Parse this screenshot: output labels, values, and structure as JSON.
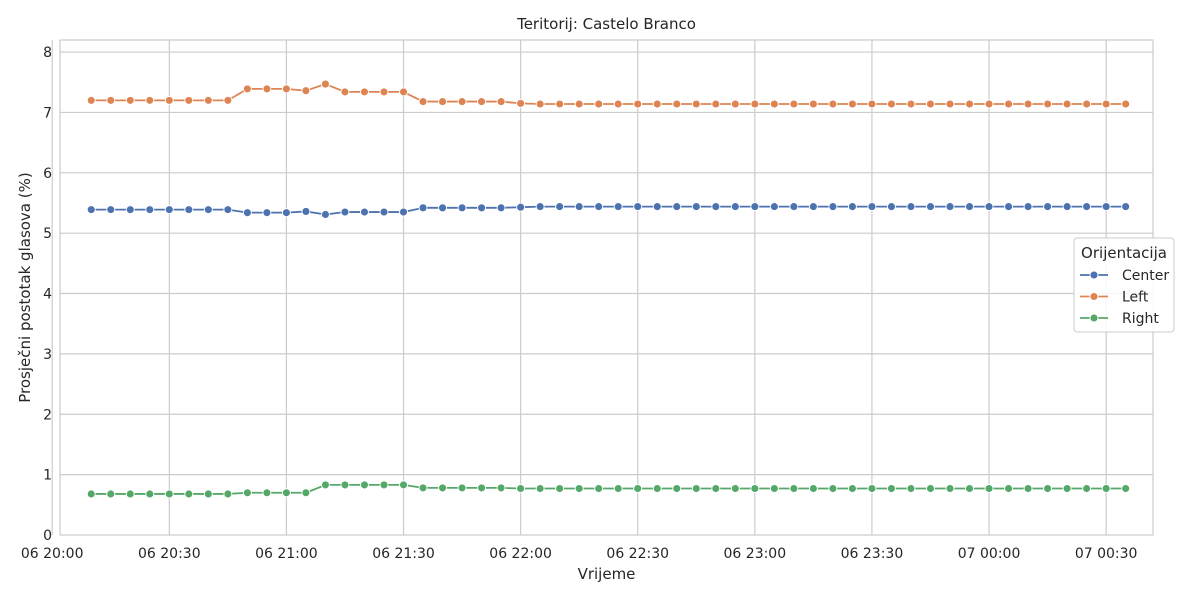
{
  "chart_data": {
    "type": "line",
    "title": "Teritorij: Castelo Branco",
    "xlabel": "Vrijeme",
    "ylabel": "Prosječni postotak glasova (%)",
    "xlim": [
      "06 20:02",
      "07 00:42"
    ],
    "ylim": [
      0,
      8.2
    ],
    "x_ticks": [
      {
        "time": "06 20:00",
        "label": "06 20:00"
      },
      {
        "time": "06 20:30",
        "label": "06 20:30"
      },
      {
        "time": "06 21:00",
        "label": "06 21:00"
      },
      {
        "time": "06 21:30",
        "label": "06 21:30"
      },
      {
        "time": "06 22:00",
        "label": "06 22:00"
      },
      {
        "time": "06 22:30",
        "label": "06 22:30"
      },
      {
        "time": "06 23:00",
        "label": "06 23:00"
      },
      {
        "time": "06 23:30",
        "label": "06 23:30"
      },
      {
        "time": "07 00:00",
        "label": "07 00:00"
      },
      {
        "time": "07 00:30",
        "label": "07 00:30"
      }
    ],
    "y_ticks": [
      0,
      1,
      2,
      3,
      4,
      5,
      6,
      7,
      8
    ],
    "grid": true,
    "legend": {
      "title": "Orijentacija",
      "position": "right"
    },
    "x": [
      "06 20:10",
      "06 20:15",
      "06 20:20",
      "06 20:25",
      "06 20:30",
      "06 20:35",
      "06 20:40",
      "06 20:45",
      "06 20:50",
      "06 20:55",
      "06 21:00",
      "06 21:05",
      "06 21:10",
      "06 21:15",
      "06 21:20",
      "06 21:25",
      "06 21:30",
      "06 21:35",
      "06 21:40",
      "06 21:45",
      "06 21:50",
      "06 21:55",
      "06 22:00",
      "06 22:05",
      "06 22:10",
      "06 22:15",
      "06 22:20",
      "06 22:25",
      "06 22:30",
      "06 22:35",
      "06 22:40",
      "06 22:45",
      "06 22:50",
      "06 22:55",
      "06 23:00",
      "06 23:05",
      "06 23:10",
      "06 23:15",
      "06 23:20",
      "06 23:25",
      "06 23:30",
      "06 23:35",
      "06 23:40",
      "06 23:45",
      "06 23:50",
      "06 23:55",
      "07 00:00",
      "07 00:05",
      "07 00:10",
      "07 00:15",
      "07 00:20",
      "07 00:25",
      "07 00:30",
      "07 00:35"
    ],
    "series": [
      {
        "name": "Center",
        "color": "#4c72b0",
        "values": [
          5.39,
          5.39,
          5.39,
          5.39,
          5.39,
          5.39,
          5.39,
          5.39,
          5.34,
          5.34,
          5.34,
          5.36,
          5.31,
          5.35,
          5.35,
          5.35,
          5.35,
          5.42,
          5.42,
          5.42,
          5.42,
          5.42,
          5.43,
          5.44,
          5.44,
          5.44,
          5.44,
          5.44,
          5.44,
          5.44,
          5.44,
          5.44,
          5.44,
          5.44,
          5.44,
          5.44,
          5.44,
          5.44,
          5.44,
          5.44,
          5.44,
          5.44,
          5.44,
          5.44,
          5.44,
          5.44,
          5.44,
          5.44,
          5.44,
          5.44,
          5.44,
          5.44,
          5.44,
          5.44
        ]
      },
      {
        "name": "Left",
        "color": "#dd8452",
        "values": [
          7.2,
          7.2,
          7.2,
          7.2,
          7.2,
          7.2,
          7.2,
          7.2,
          7.39,
          7.39,
          7.39,
          7.36,
          7.47,
          7.34,
          7.34,
          7.34,
          7.34,
          7.18,
          7.18,
          7.18,
          7.18,
          7.18,
          7.15,
          7.14,
          7.14,
          7.14,
          7.14,
          7.14,
          7.14,
          7.14,
          7.14,
          7.14,
          7.14,
          7.14,
          7.14,
          7.14,
          7.14,
          7.14,
          7.14,
          7.14,
          7.14,
          7.14,
          7.14,
          7.14,
          7.14,
          7.14,
          7.14,
          7.14,
          7.14,
          7.14,
          7.14,
          7.14,
          7.14,
          7.14
        ]
      },
      {
        "name": "Right",
        "color": "#55a868",
        "values": [
          0.68,
          0.68,
          0.68,
          0.68,
          0.68,
          0.68,
          0.68,
          0.68,
          0.7,
          0.7,
          0.7,
          0.7,
          0.83,
          0.83,
          0.83,
          0.83,
          0.83,
          0.78,
          0.78,
          0.78,
          0.78,
          0.78,
          0.77,
          0.77,
          0.77,
          0.77,
          0.77,
          0.77,
          0.77,
          0.77,
          0.77,
          0.77,
          0.77,
          0.77,
          0.77,
          0.77,
          0.77,
          0.77,
          0.77,
          0.77,
          0.77,
          0.77,
          0.77,
          0.77,
          0.77,
          0.77,
          0.77,
          0.77,
          0.77,
          0.77,
          0.77,
          0.77,
          0.77,
          0.77
        ]
      }
    ]
  }
}
